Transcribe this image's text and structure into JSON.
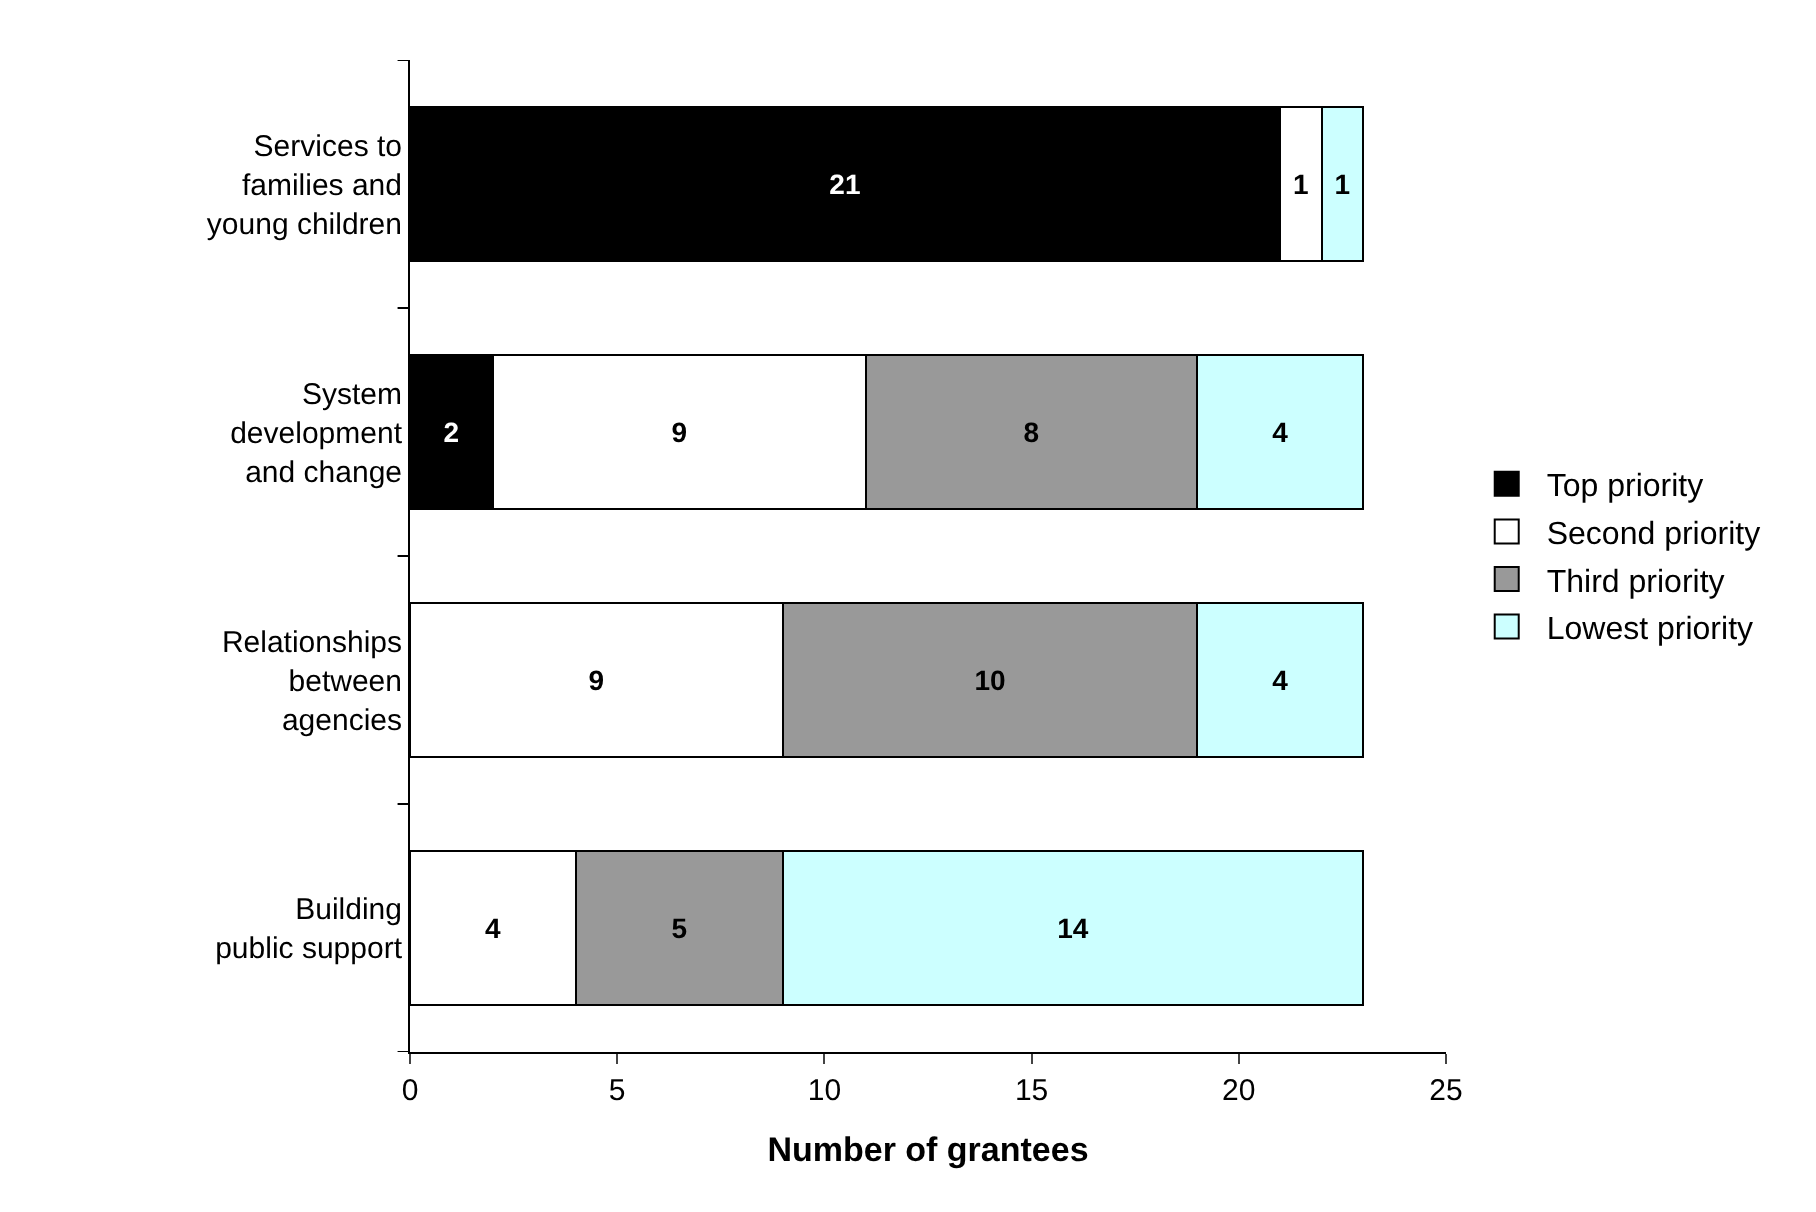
{
  "chart_data": {
    "type": "bar",
    "orientation": "horizontal",
    "stacked": true,
    "xlabel": "Number of grantees",
    "categories": [
      "Services to families and young children",
      "System development and change",
      "Relationships between agencies",
      "Building public support"
    ],
    "series": [
      {
        "name": "Top priority",
        "color": "#000000",
        "values": [
          21,
          2,
          null,
          null
        ]
      },
      {
        "name": "Second priority",
        "color": "#ffffff",
        "values": [
          1,
          9,
          9,
          4
        ]
      },
      {
        "name": "Third priority",
        "color": "#999999",
        "values": [
          null,
          8,
          10,
          5
        ]
      },
      {
        "name": "Lowest priority",
        "color": "#ccffff",
        "values": [
          1,
          4,
          4,
          14
        ]
      }
    ],
    "xlim": [
      0,
      25
    ],
    "xticks": [
      0,
      5,
      10,
      15,
      20,
      25
    ],
    "data_labels": true,
    "legend": "right"
  }
}
